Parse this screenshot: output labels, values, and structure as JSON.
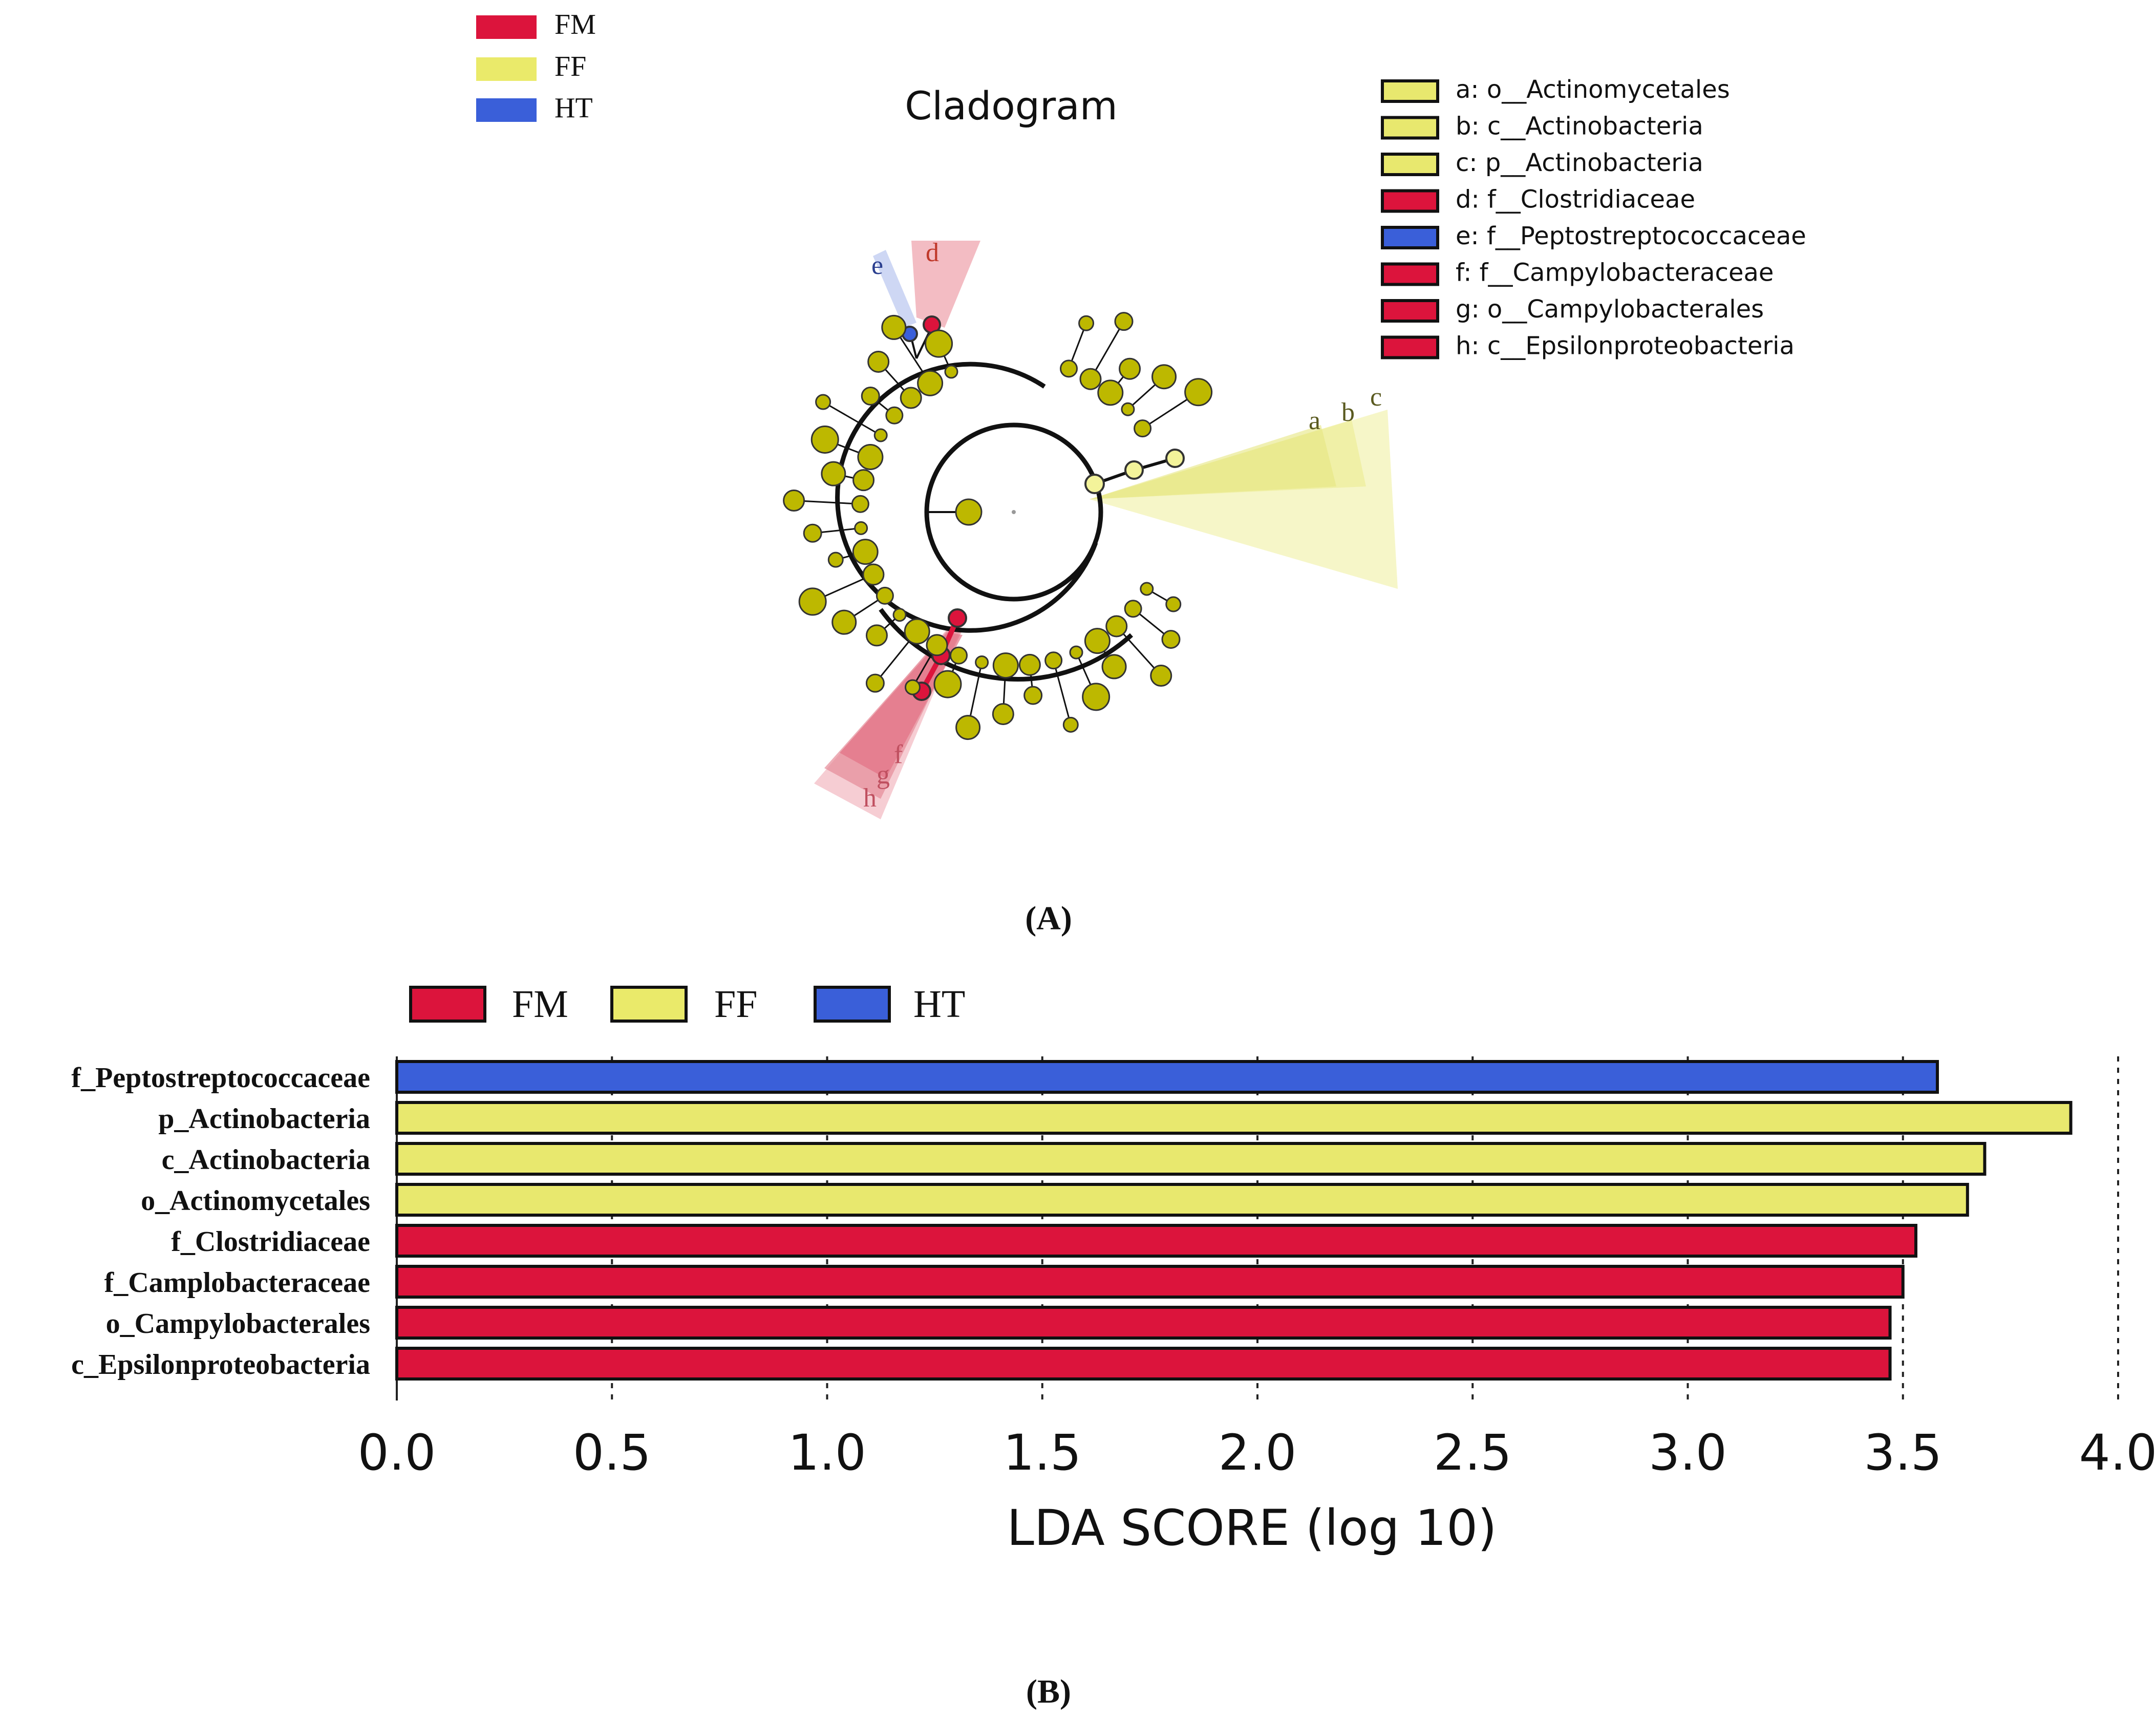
{
  "colors": {
    "FM": "#dc143c",
    "FF": "#e8e86e",
    "HT": "#3a5fd9",
    "node": "#bdb800",
    "ff_node": "#f3f39a"
  },
  "panel_a": {
    "title": "Cladogram",
    "label": "(A)",
    "group_legend": [
      {
        "group": "FM",
        "label": "FM"
      },
      {
        "group": "FF",
        "label": "FF"
      },
      {
        "group": "HT",
        "label": "HT"
      }
    ],
    "taxa_legend": [
      {
        "key": "a",
        "group": "FF",
        "label": "a: o__Actinomycetales"
      },
      {
        "key": "b",
        "group": "FF",
        "label": "b: c__Actinobacteria"
      },
      {
        "key": "c",
        "group": "FF",
        "label": "c: p__Actinobacteria"
      },
      {
        "key": "d",
        "group": "FM",
        "label": "d: f__Clostridiaceae"
      },
      {
        "key": "e",
        "group": "HT",
        "label": "e: f__Peptostreptococcaceae"
      },
      {
        "key": "f",
        "group": "FM",
        "label": "f: f__Campylobacteraceae"
      },
      {
        "key": "g",
        "group": "FM",
        "label": "g: o__Campylobacterales"
      },
      {
        "key": "h",
        "group": "FM",
        "label": "h: c__Epsilonproteobacteria"
      }
    ],
    "clade_letters": {
      "a": "a",
      "b": "b",
      "c": "c",
      "d": "d",
      "e": "e",
      "f": "f",
      "g": "g",
      "h": "h"
    }
  },
  "panel_b": {
    "label": "(B)",
    "legend": [
      {
        "group": "FM",
        "label": "FM"
      },
      {
        "group": "FF",
        "label": "FF"
      },
      {
        "group": "HT",
        "label": "HT"
      }
    ]
  },
  "chart_data": {
    "type": "bar",
    "orientation": "horizontal",
    "xlabel": "LDA SCORE (log 10)",
    "xlim": [
      0,
      4.0
    ],
    "xticks": [
      "0.0",
      "0.5",
      "1.0",
      "1.5",
      "2.0",
      "2.5",
      "3.0",
      "3.5",
      "4.0"
    ],
    "categories": [
      "f_Peptostreptococcaceae",
      "p_Actinobacteria",
      "c_Actinobacteria",
      "o_Actinomycetales",
      "f_Clostridiaceae",
      "f_Camplobacteraceae",
      "o_Campylobacterales",
      "c_Epsilonproteobacteria"
    ],
    "values": [
      3.58,
      3.89,
      3.69,
      3.65,
      3.53,
      3.5,
      3.47,
      3.47
    ],
    "groups": [
      "HT",
      "FF",
      "FF",
      "FF",
      "FM",
      "FM",
      "FM",
      "FM"
    ],
    "grid": "vertical dashed"
  }
}
